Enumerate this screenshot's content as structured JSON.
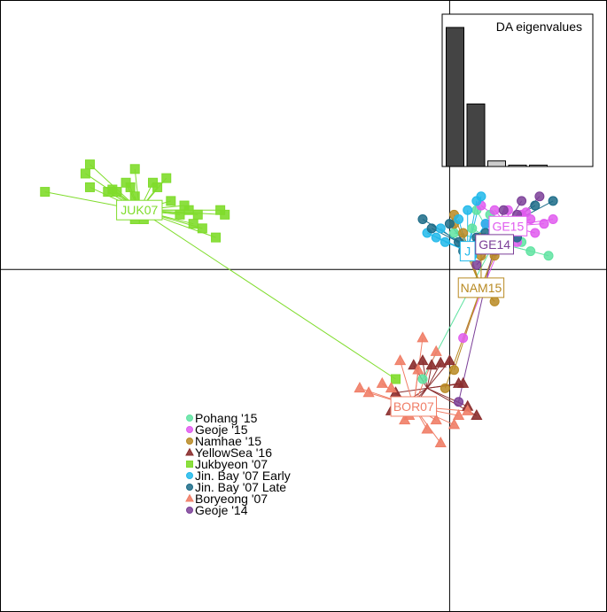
{
  "chart_data": {
    "type": "scatter",
    "title": "",
    "xlabel": "",
    "ylabel": "",
    "grid": false,
    "axes_crosshair": {
      "x": 0,
      "y": 0
    },
    "legend_position": "bottom-left",
    "xlim": [
      -10.0,
      3.5
    ],
    "ylim": [
      -7.5,
      5.9
    ],
    "series": [
      {
        "name": "Pohang '15",
        "label": "",
        "color": "#5fe3a1",
        "marker": "circle",
        "centroid": [
          1.0,
          0.6
        ],
        "points": [
          [
            0.6,
            1.3
          ],
          [
            0.9,
            1.2
          ],
          [
            1.3,
            1.0
          ],
          [
            1.6,
            0.6
          ],
          [
            1.8,
            0.4
          ],
          [
            2.2,
            0.3
          ],
          [
            0.5,
            0.9
          ],
          [
            -0.6,
            -2.4
          ],
          [
            0.1,
            0.8
          ]
        ]
      },
      {
        "name": "Geoje '15",
        "label": "GE15",
        "color": "#e05bef",
        "marker": "circle",
        "centroid": [
          1.3,
          0.95
        ],
        "points": [
          [
            0.7,
            1.4
          ],
          [
            1.0,
            1.3
          ],
          [
            1.3,
            1.3
          ],
          [
            1.6,
            1.2
          ],
          [
            1.8,
            1.1
          ],
          [
            2.3,
            1.1
          ],
          [
            2.1,
            1.0
          ],
          [
            1.9,
            0.8
          ],
          [
            1.5,
            0.6
          ],
          [
            1.2,
            0.8
          ],
          [
            0.8,
            1.0
          ],
          [
            1.1,
            0.5
          ],
          [
            0.3,
            -1.5
          ],
          [
            1.7,
            1.25
          ],
          [
            1.4,
            0.9
          ]
        ]
      },
      {
        "name": "Namhae '15",
        "label": "NAM15",
        "color": "#b88a23",
        "marker": "circle",
        "centroid": [
          0.7,
          -0.4
        ],
        "points": [
          [
            0.1,
            1.0
          ],
          [
            0.3,
            0.8
          ],
          [
            0.7,
            0.7
          ],
          [
            1.0,
            0.4
          ],
          [
            1.0,
            0.3
          ],
          [
            0.7,
            0.3
          ],
          [
            1.0,
            -0.7
          ],
          [
            0.1,
            -2.2
          ],
          [
            -0.1,
            -2.6
          ],
          [
            0.1,
            1.2
          ]
        ]
      },
      {
        "name": "YellowSea '16",
        "label": "",
        "color": "#8b2e2e",
        "marker": "triangle",
        "centroid": [
          -0.5,
          -2.6
        ],
        "points": [
          [
            -0.8,
            -2.1
          ],
          [
            -0.6,
            -2.0
          ],
          [
            -0.4,
            -2.1
          ],
          [
            -0.2,
            -2.05
          ],
          [
            0.0,
            -2.0
          ],
          [
            -1.2,
            -2.7
          ],
          [
            0.2,
            -2.5
          ],
          [
            -1.3,
            -3.1
          ],
          [
            -1.0,
            -3.1
          ],
          [
            0.6,
            -3.2
          ],
          [
            0.4,
            -3.0
          ],
          [
            -0.8,
            -3.0
          ],
          [
            0.3,
            -2.5
          ]
        ]
      },
      {
        "name": "Jukbyeon '07",
        "label": "JUK07",
        "color": "#7fdc2b",
        "marker": "square",
        "centroid": [
          -6.9,
          1.3
        ],
        "points": [
          [
            -9.0,
            1.7
          ],
          [
            -8.1,
            2.1
          ],
          [
            -8.0,
            2.3
          ],
          [
            -7.6,
            1.7
          ],
          [
            -7.4,
            1.7
          ],
          [
            -7.5,
            1.75
          ],
          [
            -7.0,
            1.6
          ],
          [
            -7.1,
            1.8
          ],
          [
            -7.2,
            1.9
          ],
          [
            -7.0,
            2.2
          ],
          [
            -6.5,
            1.8
          ],
          [
            -6.3,
            2.0
          ],
          [
            -6.8,
            1.1
          ],
          [
            -7.0,
            1.1
          ],
          [
            -6.2,
            1.5
          ],
          [
            -6.0,
            1.2
          ],
          [
            -5.8,
            1.3
          ],
          [
            -5.9,
            1.4
          ],
          [
            -5.6,
            1.2
          ],
          [
            -5.7,
            1.0
          ],
          [
            -5.2,
            0.7
          ],
          [
            -5.5,
            0.9
          ],
          [
            -5.0,
            1.2
          ],
          [
            -5.1,
            1.3
          ],
          [
            -1.2,
            -2.4
          ],
          [
            -8.0,
            1.8
          ],
          [
            -6.6,
            1.9
          ]
        ]
      },
      {
        "name": "Jin. Bay '07 Early",
        "label": "J",
        "color": "#20b8ea",
        "marker": "circle",
        "centroid": [
          0.4,
          0.4
        ],
        "points": [
          [
            0.6,
            1.5
          ],
          [
            0.7,
            1.6
          ],
          [
            0.4,
            1.3
          ],
          [
            0.2,
            1.1
          ],
          [
            -0.2,
            0.9
          ],
          [
            -0.5,
            0.8
          ],
          [
            -0.3,
            0.7
          ],
          [
            0.3,
            0.5
          ],
          [
            0.5,
            0.3
          ],
          [
            -0.1,
            0.6
          ],
          [
            0.8,
            1.0
          ]
        ]
      },
      {
        "name": "Jin. Bay '07 Late",
        "label": "",
        "color": "#1b6b87",
        "marker": "circle",
        "centroid": [
          0.4,
          0.5
        ],
        "points": [
          [
            -0.6,
            1.1
          ],
          [
            -0.4,
            0.9
          ],
          [
            0.0,
            1.0
          ],
          [
            0.2,
            0.6
          ],
          [
            0.3,
            0.4
          ],
          [
            1.0,
            0.5
          ],
          [
            0.8,
            0.8
          ],
          [
            1.3,
            0.6
          ],
          [
            1.5,
            0.7
          ],
          [
            2.3,
            1.5
          ],
          [
            1.9,
            1.4
          ],
          [
            0.6,
            0.7
          ]
        ]
      },
      {
        "name": "Boryeong '07",
        "label": "BOR07",
        "color": "#f07e67",
        "marker": "triangle",
        "centroid": [
          -0.8,
          -3.0
        ],
        "points": [
          [
            -0.6,
            -1.5
          ],
          [
            -1.1,
            -2.0
          ],
          [
            -1.5,
            -2.5
          ],
          [
            -2.0,
            -2.6
          ],
          [
            -1.8,
            -2.7
          ],
          [
            -1.2,
            -3.1
          ],
          [
            -0.3,
            -3.3
          ],
          [
            0.2,
            -3.2
          ],
          [
            0.4,
            -3.1
          ],
          [
            -0.5,
            -3.5
          ],
          [
            -0.2,
            -3.8
          ],
          [
            -0.9,
            -3.2
          ],
          [
            -1.0,
            -3.3
          ],
          [
            -0.7,
            -2.2
          ],
          [
            -0.3,
            -1.8
          ],
          [
            0.1,
            -3.4
          ],
          [
            -0.4,
            -3.0
          ],
          [
            -1.3,
            -2.6
          ]
        ]
      },
      {
        "name": "Geoje '14",
        "label": "GE14",
        "color": "#7b3f98",
        "marker": "circle",
        "centroid": [
          1.0,
          0.55
        ],
        "points": [
          [
            2.0,
            1.6
          ],
          [
            1.6,
            1.5
          ],
          [
            1.2,
            1.3
          ],
          [
            1.5,
            1.2
          ],
          [
            0.6,
            0.1
          ],
          [
            1.0,
            0.7
          ],
          [
            1.3,
            0.8
          ],
          [
            0.2,
            -2.9
          ],
          [
            0.9,
            0.5
          ]
        ]
      }
    ],
    "eigenvalues": {
      "title": "DA eigenvalues",
      "values": [
        100,
        45,
        4,
        1,
        1
      ],
      "retained": [
        true,
        true,
        false,
        false,
        false
      ]
    }
  }
}
